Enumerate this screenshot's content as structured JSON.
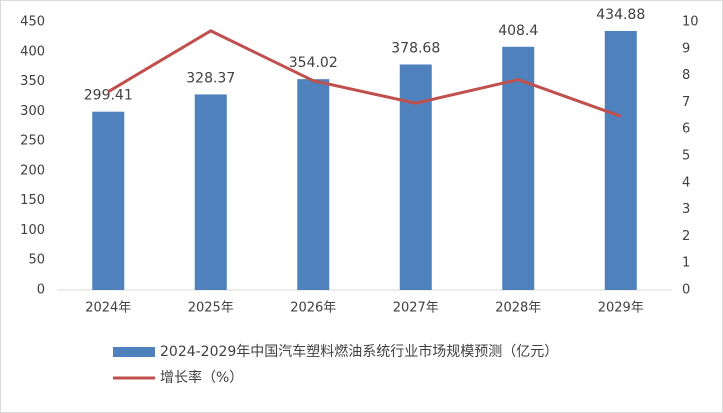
{
  "chart_data": {
    "type": "bar",
    "categories": [
      "2024年",
      "2025年",
      "2026年",
      "2027年",
      "2028年",
      "2029年"
    ],
    "series": [
      {
        "name": "2024-2029年中国汽车塑料燃油系统行业市场规模预测（亿元）",
        "type": "bar",
        "color": "#4f81bd",
        "values": [
          299.41,
          328.37,
          354.02,
          378.68,
          408.4,
          434.88
        ],
        "data_labels": true
      },
      {
        "name": "增长率（%）",
        "type": "line",
        "color": "#c0504d",
        "axis": "y2",
        "values": [
          7.4,
          9.67,
          7.81,
          6.97,
          7.85,
          6.48
        ]
      }
    ],
    "ylim": [
      0,
      450
    ],
    "yticks": [
      0,
      50,
      100,
      150,
      200,
      250,
      300,
      350,
      400,
      450
    ],
    "y2lim": [
      0,
      10
    ],
    "y2ticks": [
      0,
      1,
      2,
      3,
      4,
      5,
      6,
      7,
      8,
      9,
      10
    ],
    "legend": "bottom"
  }
}
